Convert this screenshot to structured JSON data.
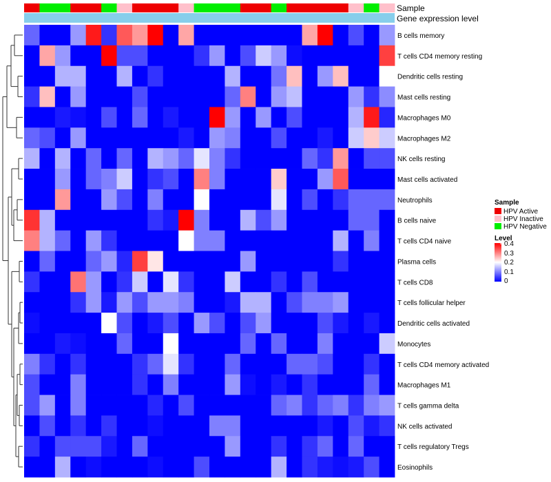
{
  "chart_data": {
    "type": "heatmap",
    "title": "",
    "annotation_labels": [
      "Sample",
      "Gene expression level"
    ],
    "annotation_colors": {
      "HPV Active": "#ee0000",
      "HPV Inactive": "#ffc0cb",
      "HPV Negative": "#00ee00",
      "Gene expression level": "#87ceeb"
    },
    "samples": [
      "HPV Active",
      "HPV Negative",
      "HPV Negative",
      "HPV Active",
      "HPV Active",
      "HPV Negative",
      "HPV Inactive",
      "HPV Active",
      "HPV Active",
      "HPV Active",
      "HPV Inactive",
      "HPV Negative",
      "HPV Negative",
      "HPV Negative",
      "HPV Active",
      "HPV Active",
      "HPV Negative",
      "HPV Active",
      "HPV Active",
      "HPV Active",
      "HPV Active",
      "HPV Inactive",
      "HPV Negative",
      "HPV Inactive"
    ],
    "rows": [
      "B cells memory",
      "T cells CD4 memory resting",
      "Dendritic cells resting",
      "Mast cells resting",
      "Macrophages M0",
      "Macrophages M2",
      "NK cells resting",
      "Mast cells activated",
      "Neutrophils",
      "B cells naive",
      "T cells CD4 naive",
      "Plasma cells",
      "T cells CD8",
      "T cells follicular helper",
      "Dendritic cells activated",
      "Monocytes",
      "T cells CD4 memory activated",
      "Macrophages M1",
      "T cells gamma delta",
      "NK cells activated",
      "T cells regulatory  Tregs",
      "Eosinophils"
    ],
    "values": [
      [
        0.08,
        0,
        0,
        0.12,
        0.38,
        0.04,
        0.33,
        0.28,
        0.4,
        0,
        0.27,
        0,
        0,
        0,
        0,
        0,
        0,
        0,
        0.27,
        0.4,
        0,
        0.06,
        0,
        0.12
      ],
      [
        0,
        0.27,
        0.12,
        0,
        0,
        0.4,
        0.06,
        0.06,
        0,
        0,
        0,
        0.04,
        0.12,
        0,
        0.06,
        0.16,
        0.12,
        0.01,
        0,
        0,
        0,
        0,
        0,
        0.35
      ],
      [
        0,
        0,
        0.14,
        0.14,
        0,
        0,
        0.14,
        0,
        0.04,
        0,
        0,
        0,
        0,
        0.14,
        0,
        0,
        0.09,
        0.25,
        0,
        0.12,
        0.25,
        0,
        0,
        0.2
      ],
      [
        0.04,
        0.25,
        0,
        0.12,
        0,
        0,
        0,
        0.06,
        0,
        0,
        0,
        0,
        0,
        0.08,
        0.3,
        0,
        0.12,
        0.15,
        0,
        0,
        0,
        0.12,
        0.04,
        0.11
      ],
      [
        0,
        0,
        0.02,
        0.01,
        0,
        0.06,
        0,
        0.08,
        0,
        0.02,
        0,
        0,
        0.4,
        0.12,
        0,
        0.12,
        0,
        0.06,
        0,
        0,
        0,
        0.14,
        0.38,
        0.03
      ],
      [
        0.08,
        0.06,
        0,
        0.12,
        0,
        0,
        0,
        0,
        0,
        0,
        0.02,
        0,
        0.12,
        0.1,
        0,
        0,
        0.06,
        0,
        0,
        0.02,
        0,
        0.16,
        0.24,
        0.16
      ],
      [
        0.14,
        0,
        0.14,
        0,
        0.08,
        0,
        0.08,
        0,
        0.14,
        0.12,
        0.08,
        0.18,
        0.1,
        0.04,
        0,
        0,
        0,
        0,
        0.08,
        0.04,
        0.28,
        0,
        0.06,
        0.06
      ],
      [
        0,
        0,
        0.12,
        0,
        0.08,
        0.1,
        0.16,
        0,
        0.04,
        0.06,
        0,
        0.3,
        0.1,
        0,
        0,
        0,
        0.24,
        0,
        0,
        0.12,
        0.33,
        0,
        0,
        0
      ],
      [
        0,
        0,
        0.28,
        0,
        0,
        0.12,
        0.06,
        0,
        0.1,
        0,
        0,
        0.2,
        0,
        0,
        0,
        0,
        0.18,
        0,
        0.06,
        0,
        0.04,
        0.08,
        0.08,
        0.08
      ],
      [
        0.36,
        0.14,
        0,
        0,
        0,
        0,
        0,
        0,
        0.04,
        0.02,
        0.4,
        0.1,
        0,
        0,
        0.14,
        0.06,
        0.12,
        0,
        0,
        0,
        0,
        0.08,
        0.08,
        0
      ],
      [
        0.3,
        0.14,
        0.08,
        0,
        0.12,
        0.04,
        0,
        0,
        0,
        0,
        0.2,
        0.1,
        0.1,
        0,
        0,
        0,
        0,
        0,
        0,
        0,
        0.14,
        0,
        0.1,
        0
      ],
      [
        0,
        0.08,
        0,
        0,
        0.08,
        0.12,
        0.03,
        0.35,
        0.22,
        0,
        0,
        0,
        0,
        0,
        0.12,
        0,
        0,
        0,
        0,
        0,
        0.04,
        0,
        0,
        0
      ],
      [
        0.04,
        0,
        0,
        0.31,
        0.12,
        0,
        0.04,
        0.16,
        0,
        0.18,
        0.04,
        0,
        0,
        0.16,
        0,
        0,
        0.04,
        0,
        0.06,
        0,
        0,
        0,
        0,
        0
      ],
      [
        0,
        0,
        0,
        0.04,
        0.12,
        0.02,
        0.12,
        0.06,
        0.12,
        0.12,
        0.1,
        0,
        0,
        0.02,
        0.14,
        0.14,
        0,
        0.06,
        0.1,
        0.1,
        0.12,
        0,
        0,
        0
      ],
      [
        0.01,
        0,
        0,
        0,
        0,
        0.2,
        0.06,
        0,
        0.02,
        0.06,
        0,
        0.12,
        0.06,
        0,
        0.06,
        0.12,
        0,
        0,
        0,
        0.06,
        0.02,
        0,
        0.02,
        0
      ],
      [
        0,
        0,
        0.02,
        0.01,
        0,
        0,
        0.08,
        0,
        0,
        0.2,
        0,
        0,
        0,
        0,
        0.08,
        0,
        0.08,
        0,
        0,
        0.1,
        0,
        0,
        0,
        0.16
      ],
      [
        0.1,
        0.04,
        0,
        0.04,
        0,
        0,
        0,
        0.04,
        0.08,
        0.18,
        0.04,
        0,
        0,
        0.08,
        0,
        0,
        0,
        0.08,
        0.08,
        0.06,
        0,
        0,
        0.04,
        0
      ],
      [
        0.06,
        0,
        0,
        0.1,
        0,
        0,
        0,
        0.04,
        0,
        0.1,
        0,
        0,
        0,
        0.12,
        0.01,
        0,
        0.02,
        0,
        0.04,
        0,
        0,
        0,
        0.08,
        0
      ],
      [
        0.06,
        0.12,
        0,
        0.1,
        0,
        0,
        0,
        0,
        0.03,
        0,
        0.06,
        0,
        0,
        0,
        0,
        0,
        0.08,
        0.1,
        0.04,
        0.08,
        0.1,
        0.04,
        0.1,
        0.12
      ],
      [
        0,
        0.06,
        0,
        0.04,
        0,
        0.04,
        0,
        0,
        0.01,
        0,
        0,
        0,
        0.1,
        0.1,
        0,
        0,
        0,
        0,
        0,
        0.02,
        0,
        0.06,
        0.02,
        0.04
      ],
      [
        0.04,
        0,
        0.06,
        0.06,
        0.06,
        0.02,
        0,
        0.08,
        0,
        0,
        0,
        0,
        0,
        0.12,
        0,
        0,
        0.04,
        0,
        0.04,
        0.08,
        0,
        0.08,
        0,
        0
      ],
      [
        0,
        0,
        0.14,
        0,
        0.01,
        0,
        0,
        0,
        0.01,
        0,
        0,
        0.06,
        0,
        0,
        0,
        0,
        0.14,
        0,
        0.04,
        0.02,
        0.01,
        0.02,
        0.06,
        0
      ]
    ],
    "legend": {
      "sample_title": "Sample",
      "sample_entries": [
        "HPV Active",
        "HPV Inactive",
        "HPV Negative"
      ],
      "level_title": "Level",
      "level_ticks": [
        "0.4",
        "0.3",
        "0.2",
        "0.1",
        "0"
      ],
      "level_range": [
        0,
        0.4
      ]
    },
    "colorscale": [
      "#0000ff",
      "#ffffff",
      "#ff0000"
    ]
  }
}
